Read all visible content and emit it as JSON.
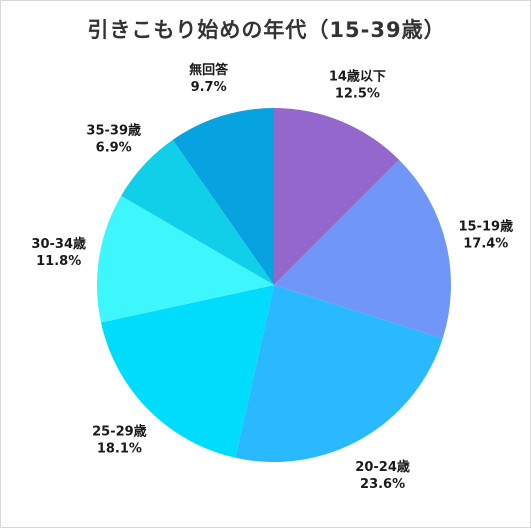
{
  "title": "引きこもり始めの年代（15-39歳）",
  "chart_data": {
    "type": "pie",
    "title": "引きこもり始めの年代（15-39歳）",
    "start_angle_deg": 0,
    "direction": "clockwise",
    "slices": [
      {
        "label": "14歳以下",
        "value": 12.5,
        "value_label": "12.5%",
        "color": "#9467cc"
      },
      {
        "label": "15-19歳",
        "value": 17.4,
        "value_label": "17.4%",
        "color": "#7096f7"
      },
      {
        "label": "20-24歳",
        "value": 23.6,
        "value_label": "23.6%",
        "color": "#2ab9ff"
      },
      {
        "label": "25-29歳",
        "value": 18.1,
        "value_label": "18.1%",
        "color": "#00dcfb"
      },
      {
        "label": "30-34歳",
        "value": 11.8,
        "value_label": "11.8%",
        "color": "#3df7fc"
      },
      {
        "label": "35-39歳",
        "value": 6.9,
        "value_label": "6.9%",
        "color": "#11cfe9"
      },
      {
        "label": "無回答",
        "value": 9.7,
        "value_label": "9.7%",
        "color": "#07a2e0"
      }
    ]
  }
}
